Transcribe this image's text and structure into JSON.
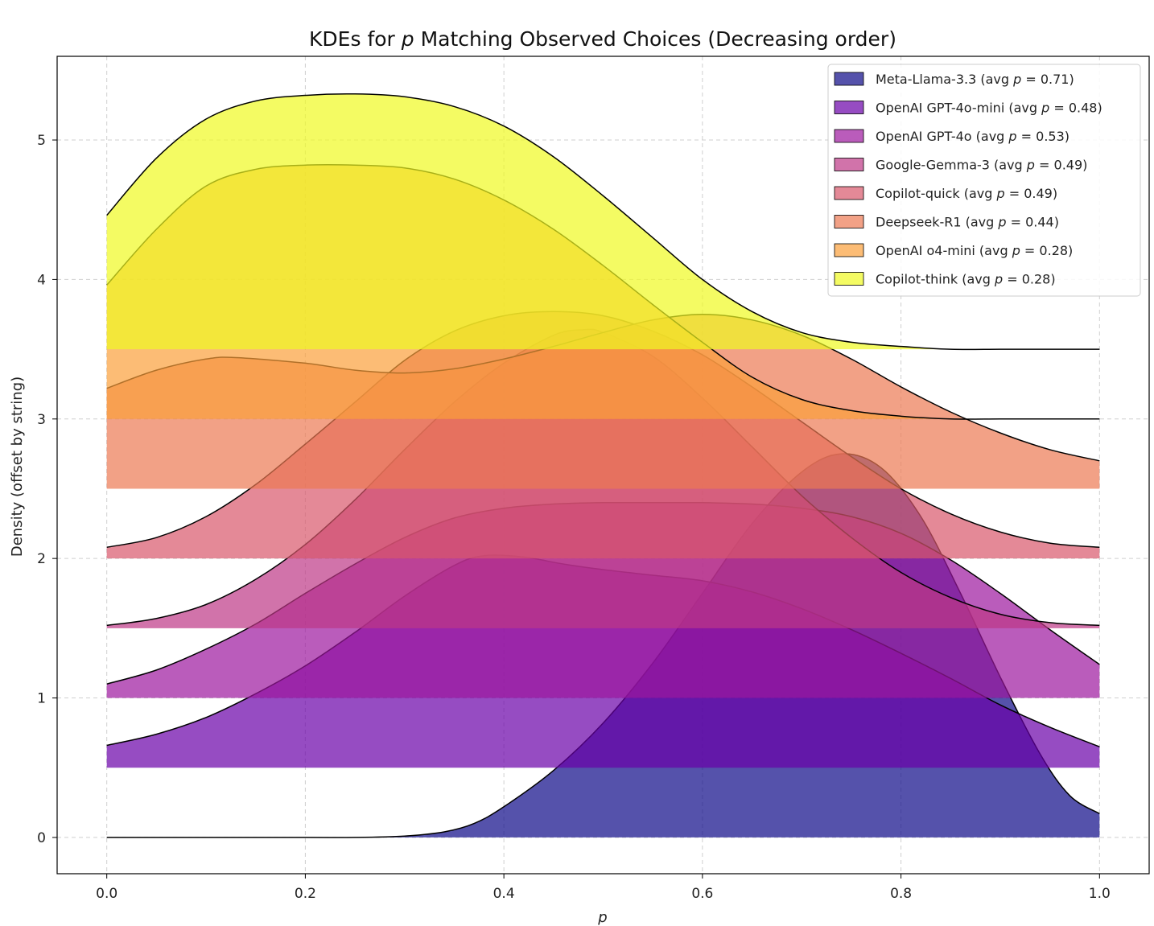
{
  "chart_data": {
    "type": "area",
    "title_parts": [
      "KDEs for ",
      "p",
      " Matching Observed Choices (Decreasing order)"
    ],
    "xlabel": "p",
    "ylabel": "Density (offset by string)",
    "xlim": [
      -0.05,
      1.05
    ],
    "ylim": [
      -0.26,
      5.6
    ],
    "x_ticks": [
      0.0,
      0.2,
      0.4,
      0.6,
      0.8,
      1.0
    ],
    "x_tick_labels": [
      "0.0",
      "0.2",
      "0.4",
      "0.6",
      "0.8",
      "1.0"
    ],
    "y_ticks": [
      0,
      1,
      2,
      3,
      4,
      5
    ],
    "y_tick_labels": [
      "0",
      "1",
      "2",
      "3",
      "4",
      "5"
    ],
    "grid": true,
    "legend_position": "top-right",
    "series": [
      {
        "legend_parts": [
          "Meta-Llama-3.3 (avg ",
          "p",
          " = 0.71)"
        ],
        "offset": 0.0,
        "color": "#0d0887",
        "x": [
          0.0,
          0.1,
          0.2,
          0.25,
          0.3,
          0.34,
          0.37,
          0.4,
          0.45,
          0.5,
          0.55,
          0.6,
          0.65,
          0.7,
          0.74,
          0.78,
          0.82,
          0.86,
          0.9,
          0.94,
          0.97,
          1.0
        ],
        "y": [
          0.0,
          0.0,
          0.0,
          0.0,
          0.01,
          0.04,
          0.1,
          0.22,
          0.48,
          0.82,
          1.25,
          1.75,
          2.25,
          2.62,
          2.75,
          2.65,
          2.3,
          1.75,
          1.15,
          0.6,
          0.3,
          0.17
        ]
      },
      {
        "legend_parts": [
          "OpenAI GPT-4o-mini (avg ",
          "p",
          " = 0.48)"
        ],
        "offset": 0.5,
        "color": "#6a00a8",
        "x": [
          0.0,
          0.05,
          0.1,
          0.15,
          0.2,
          0.25,
          0.3,
          0.35,
          0.38,
          0.42,
          0.46,
          0.5,
          0.55,
          0.6,
          0.65,
          0.7,
          0.75,
          0.8,
          0.85,
          0.9,
          0.95,
          1.0
        ],
        "y": [
          0.66,
          0.74,
          0.86,
          1.03,
          1.23,
          1.47,
          1.73,
          1.95,
          2.02,
          2.01,
          1.96,
          1.92,
          1.88,
          1.84,
          1.76,
          1.64,
          1.49,
          1.32,
          1.14,
          0.95,
          0.79,
          0.65
        ]
      },
      {
        "legend_parts": [
          "OpenAI GPT-4o (avg ",
          "p",
          " = 0.53)"
        ],
        "offset": 1.0,
        "color": "#9c179e",
        "x": [
          0.0,
          0.05,
          0.1,
          0.15,
          0.2,
          0.25,
          0.3,
          0.35,
          0.4,
          0.45,
          0.5,
          0.55,
          0.6,
          0.65,
          0.7,
          0.75,
          0.8,
          0.85,
          0.9,
          0.95,
          1.0
        ],
        "y": [
          1.1,
          1.2,
          1.35,
          1.53,
          1.75,
          1.96,
          2.15,
          2.29,
          2.36,
          2.39,
          2.4,
          2.4,
          2.4,
          2.39,
          2.36,
          2.3,
          2.18,
          1.99,
          1.75,
          1.49,
          1.24
        ]
      },
      {
        "legend_parts": [
          "Google-Gemma-3 (avg ",
          "p",
          " = 0.49)"
        ],
        "offset": 1.5,
        "color": "#bd3786",
        "x": [
          0.0,
          0.05,
          0.1,
          0.15,
          0.2,
          0.25,
          0.3,
          0.35,
          0.4,
          0.45,
          0.48,
          0.5,
          0.55,
          0.6,
          0.65,
          0.7,
          0.75,
          0.8,
          0.85,
          0.9,
          0.95,
          1.0
        ],
        "y": [
          1.52,
          1.57,
          1.67,
          1.85,
          2.1,
          2.42,
          2.78,
          3.12,
          3.4,
          3.6,
          3.64,
          3.62,
          3.45,
          3.15,
          2.8,
          2.45,
          2.15,
          1.9,
          1.72,
          1.6,
          1.54,
          1.52
        ]
      },
      {
        "legend_parts": [
          "Copilot-quick (avg ",
          "p",
          " = 0.49)"
        ],
        "offset": 2.0,
        "color": "#d8576b",
        "x": [
          0.0,
          0.05,
          0.1,
          0.15,
          0.2,
          0.25,
          0.3,
          0.35,
          0.4,
          0.45,
          0.5,
          0.55,
          0.6,
          0.65,
          0.7,
          0.75,
          0.8,
          0.85,
          0.9,
          0.95,
          1.0
        ],
        "y": [
          2.08,
          2.15,
          2.3,
          2.53,
          2.82,
          3.12,
          3.42,
          3.63,
          3.74,
          3.77,
          3.74,
          3.63,
          3.46,
          3.23,
          2.98,
          2.73,
          2.5,
          2.32,
          2.19,
          2.11,
          2.08
        ]
      },
      {
        "legend_parts": [
          "Deepseek-R1 (avg ",
          "p",
          " = 0.44)"
        ],
        "offset": 2.5,
        "color": "#ed7953",
        "x": [
          0.0,
          0.05,
          0.1,
          0.13,
          0.2,
          0.25,
          0.3,
          0.35,
          0.4,
          0.45,
          0.5,
          0.55,
          0.6,
          0.65,
          0.7,
          0.75,
          0.8,
          0.85,
          0.9,
          0.95,
          1.0
        ],
        "y": [
          3.22,
          3.35,
          3.43,
          3.44,
          3.4,
          3.35,
          3.33,
          3.36,
          3.43,
          3.52,
          3.62,
          3.71,
          3.75,
          3.71,
          3.6,
          3.43,
          3.23,
          3.05,
          2.9,
          2.78,
          2.7
        ]
      },
      {
        "legend_parts": [
          "OpenAI o4-mini (avg ",
          "p",
          " = 0.28)"
        ],
        "offset": 3.0,
        "color": "#fb9f3a",
        "x": [
          0.0,
          0.05,
          0.1,
          0.15,
          0.2,
          0.25,
          0.3,
          0.35,
          0.4,
          0.45,
          0.5,
          0.55,
          0.6,
          0.65,
          0.7,
          0.75,
          0.8,
          0.85,
          0.9,
          0.95,
          1.0
        ],
        "y": [
          3.96,
          4.36,
          4.67,
          4.79,
          4.82,
          4.82,
          4.8,
          4.72,
          4.57,
          4.36,
          4.1,
          3.82,
          3.55,
          3.3,
          3.14,
          3.06,
          3.02,
          3.0,
          3.0,
          3.0,
          3.0
        ]
      },
      {
        "legend_parts": [
          "Copilot-think (avg ",
          "p",
          " = 0.28)"
        ],
        "offset": 3.5,
        "color": "#f0f921",
        "x": [
          0.0,
          0.05,
          0.1,
          0.15,
          0.2,
          0.25,
          0.3,
          0.35,
          0.4,
          0.45,
          0.5,
          0.55,
          0.6,
          0.65,
          0.7,
          0.75,
          0.8,
          0.85,
          0.9,
          0.95,
          1.0
        ],
        "y": [
          4.46,
          4.87,
          5.15,
          5.28,
          5.32,
          5.33,
          5.31,
          5.24,
          5.1,
          4.88,
          4.6,
          4.3,
          4.0,
          3.77,
          3.62,
          3.55,
          3.52,
          3.5,
          3.5,
          3.5,
          3.5
        ]
      }
    ]
  }
}
